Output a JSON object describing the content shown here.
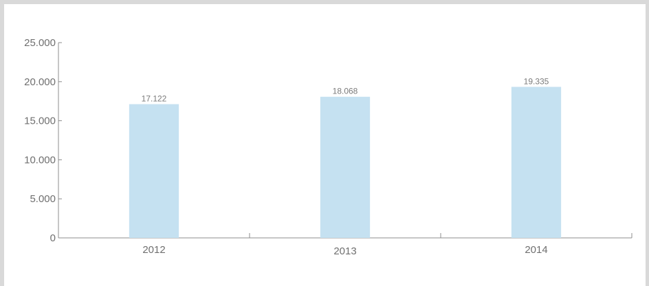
{
  "chart_data": {
    "type": "bar",
    "title": "",
    "xlabel": "",
    "ylabel": "",
    "categories": [
      "2012",
      "2013",
      "2014"
    ],
    "category_label_offsets": [
      0,
      2,
      0
    ],
    "values": [
      17122,
      18068,
      19335
    ],
    "value_labels": [
      "17.122",
      "18.068",
      "19.335"
    ],
    "ylim": [
      0,
      25000
    ],
    "yticks": [
      0,
      5000,
      10000,
      15000,
      20000,
      25000
    ],
    "ytick_labels": [
      "0",
      "5.000",
      "10.000",
      "15.000",
      "20.000",
      "25.000"
    ],
    "grid": false,
    "legend": "none",
    "colors": {
      "bar": "#c5e1f1",
      "axis": "#8c8c8c",
      "text": "#6f6f6f",
      "background": "#ffffff",
      "frame": "#d9d9d9"
    }
  }
}
